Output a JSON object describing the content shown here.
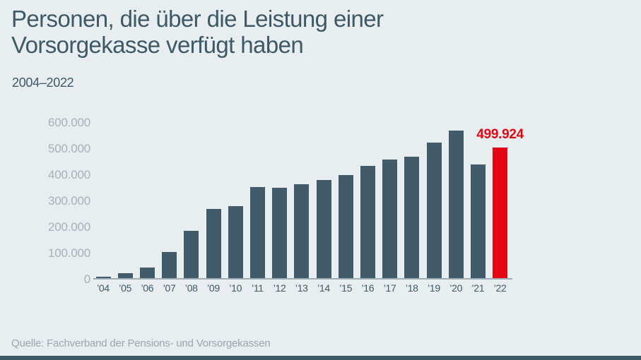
{
  "header": {
    "title": "Personen, die über die Leistung einer Vorsorgekasse verfügt haben",
    "title_lines": [
      "Personen, die über die Leistung einer",
      "Vorsorgekasse verfügt haben"
    ],
    "subtitle": "2004–2022"
  },
  "chart_data": {
    "type": "bar",
    "title": "Personen, die über die Leistung einer Vorsorgekasse verfügt haben",
    "subtitle": "2004–2022",
    "xlabel": "",
    "ylabel": "",
    "categories": [
      "’04",
      "’05",
      "’06",
      "’07",
      "’08",
      "’09",
      "’10",
      "’11",
      "’12",
      "’13",
      "’14",
      "’15",
      "’16",
      "’17",
      "’18",
      "’19",
      "’20",
      "’21",
      "’22"
    ],
    "values": [
      5000,
      20000,
      40000,
      100000,
      180000,
      265000,
      275000,
      350000,
      345000,
      360000,
      375000,
      395000,
      430000,
      455000,
      465000,
      520000,
      565000,
      435000,
      499924
    ],
    "ylim": [
      0,
      600000
    ],
    "yticks": [
      {
        "value": 0,
        "label": "0"
      },
      {
        "value": 100000,
        "label": "100.000"
      },
      {
        "value": 200000,
        "label": "200.000"
      },
      {
        "value": 300000,
        "label": "300.000"
      },
      {
        "value": 400000,
        "label": "400.000"
      },
      {
        "value": 500000,
        "label": "500.000"
      },
      {
        "value": 600000,
        "label": "600.000"
      }
    ],
    "grid": false,
    "legend": false,
    "bar_color": "#415b6b",
    "highlight": {
      "index": 18,
      "label": "499.924",
      "color": "#e30613"
    }
  },
  "footer": {
    "source": "Quelle: Fachverband der Pensions- und Vorsorgekassen"
  },
  "colors": {
    "background": "#e8edf0",
    "bar": "#415b6b",
    "accent_red": "#e30613",
    "text_dark": "#3d5866",
    "text_muted": "#a6b1b8",
    "footer_bar": "#3d5866"
  }
}
